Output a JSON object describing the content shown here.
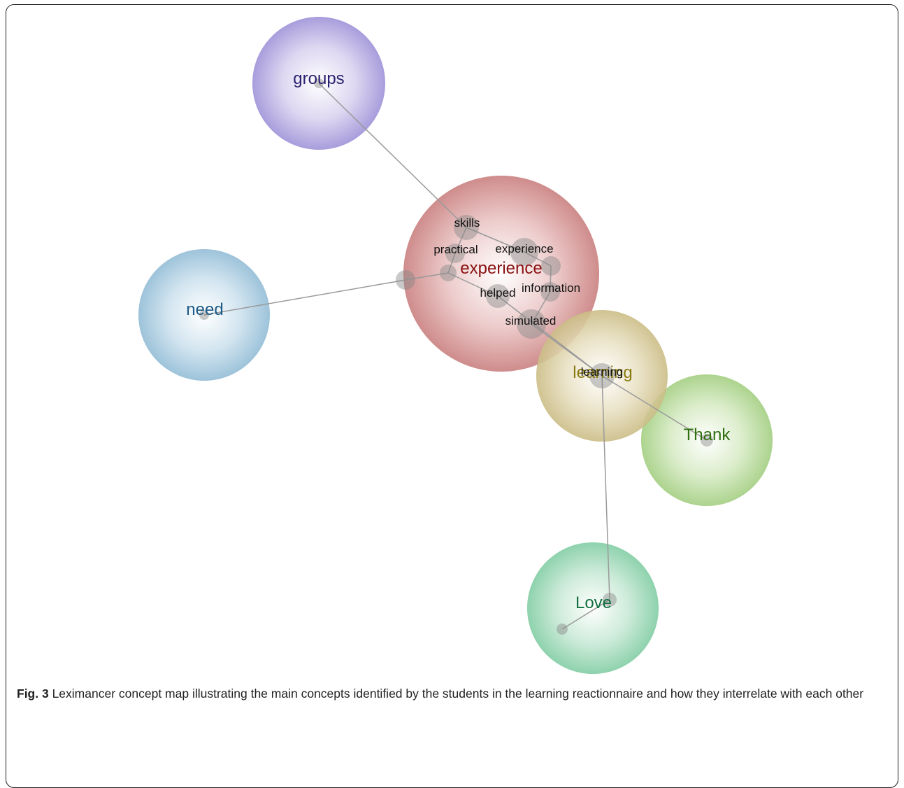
{
  "themes": [
    {
      "name": "groups",
      "color": "#8a7fd0",
      "text_color": "#2a2270"
    },
    {
      "name": "experience",
      "color": "#c97d7d",
      "text_color": "#8a1010"
    },
    {
      "name": "need",
      "color": "#8bb8d4",
      "text_color": "#1d5a86"
    },
    {
      "name": "learning",
      "color": "#c8b87e",
      "text_color": "#8a7a10"
    },
    {
      "name": "Thank",
      "color": "#9cc978",
      "text_color": "#2f6f10"
    },
    {
      "name": "Love",
      "color": "#7cc8a0",
      "text_color": "#137040"
    }
  ],
  "concepts": [
    "skills",
    "practical",
    "experience",
    "helped",
    "information",
    "simulated",
    "learning"
  ],
  "caption": {
    "label": "Fig. 3",
    "text": " Leximancer concept map illustrating the main concepts identified by the students in the learning reactionnaire and how they interrelate with each other"
  }
}
